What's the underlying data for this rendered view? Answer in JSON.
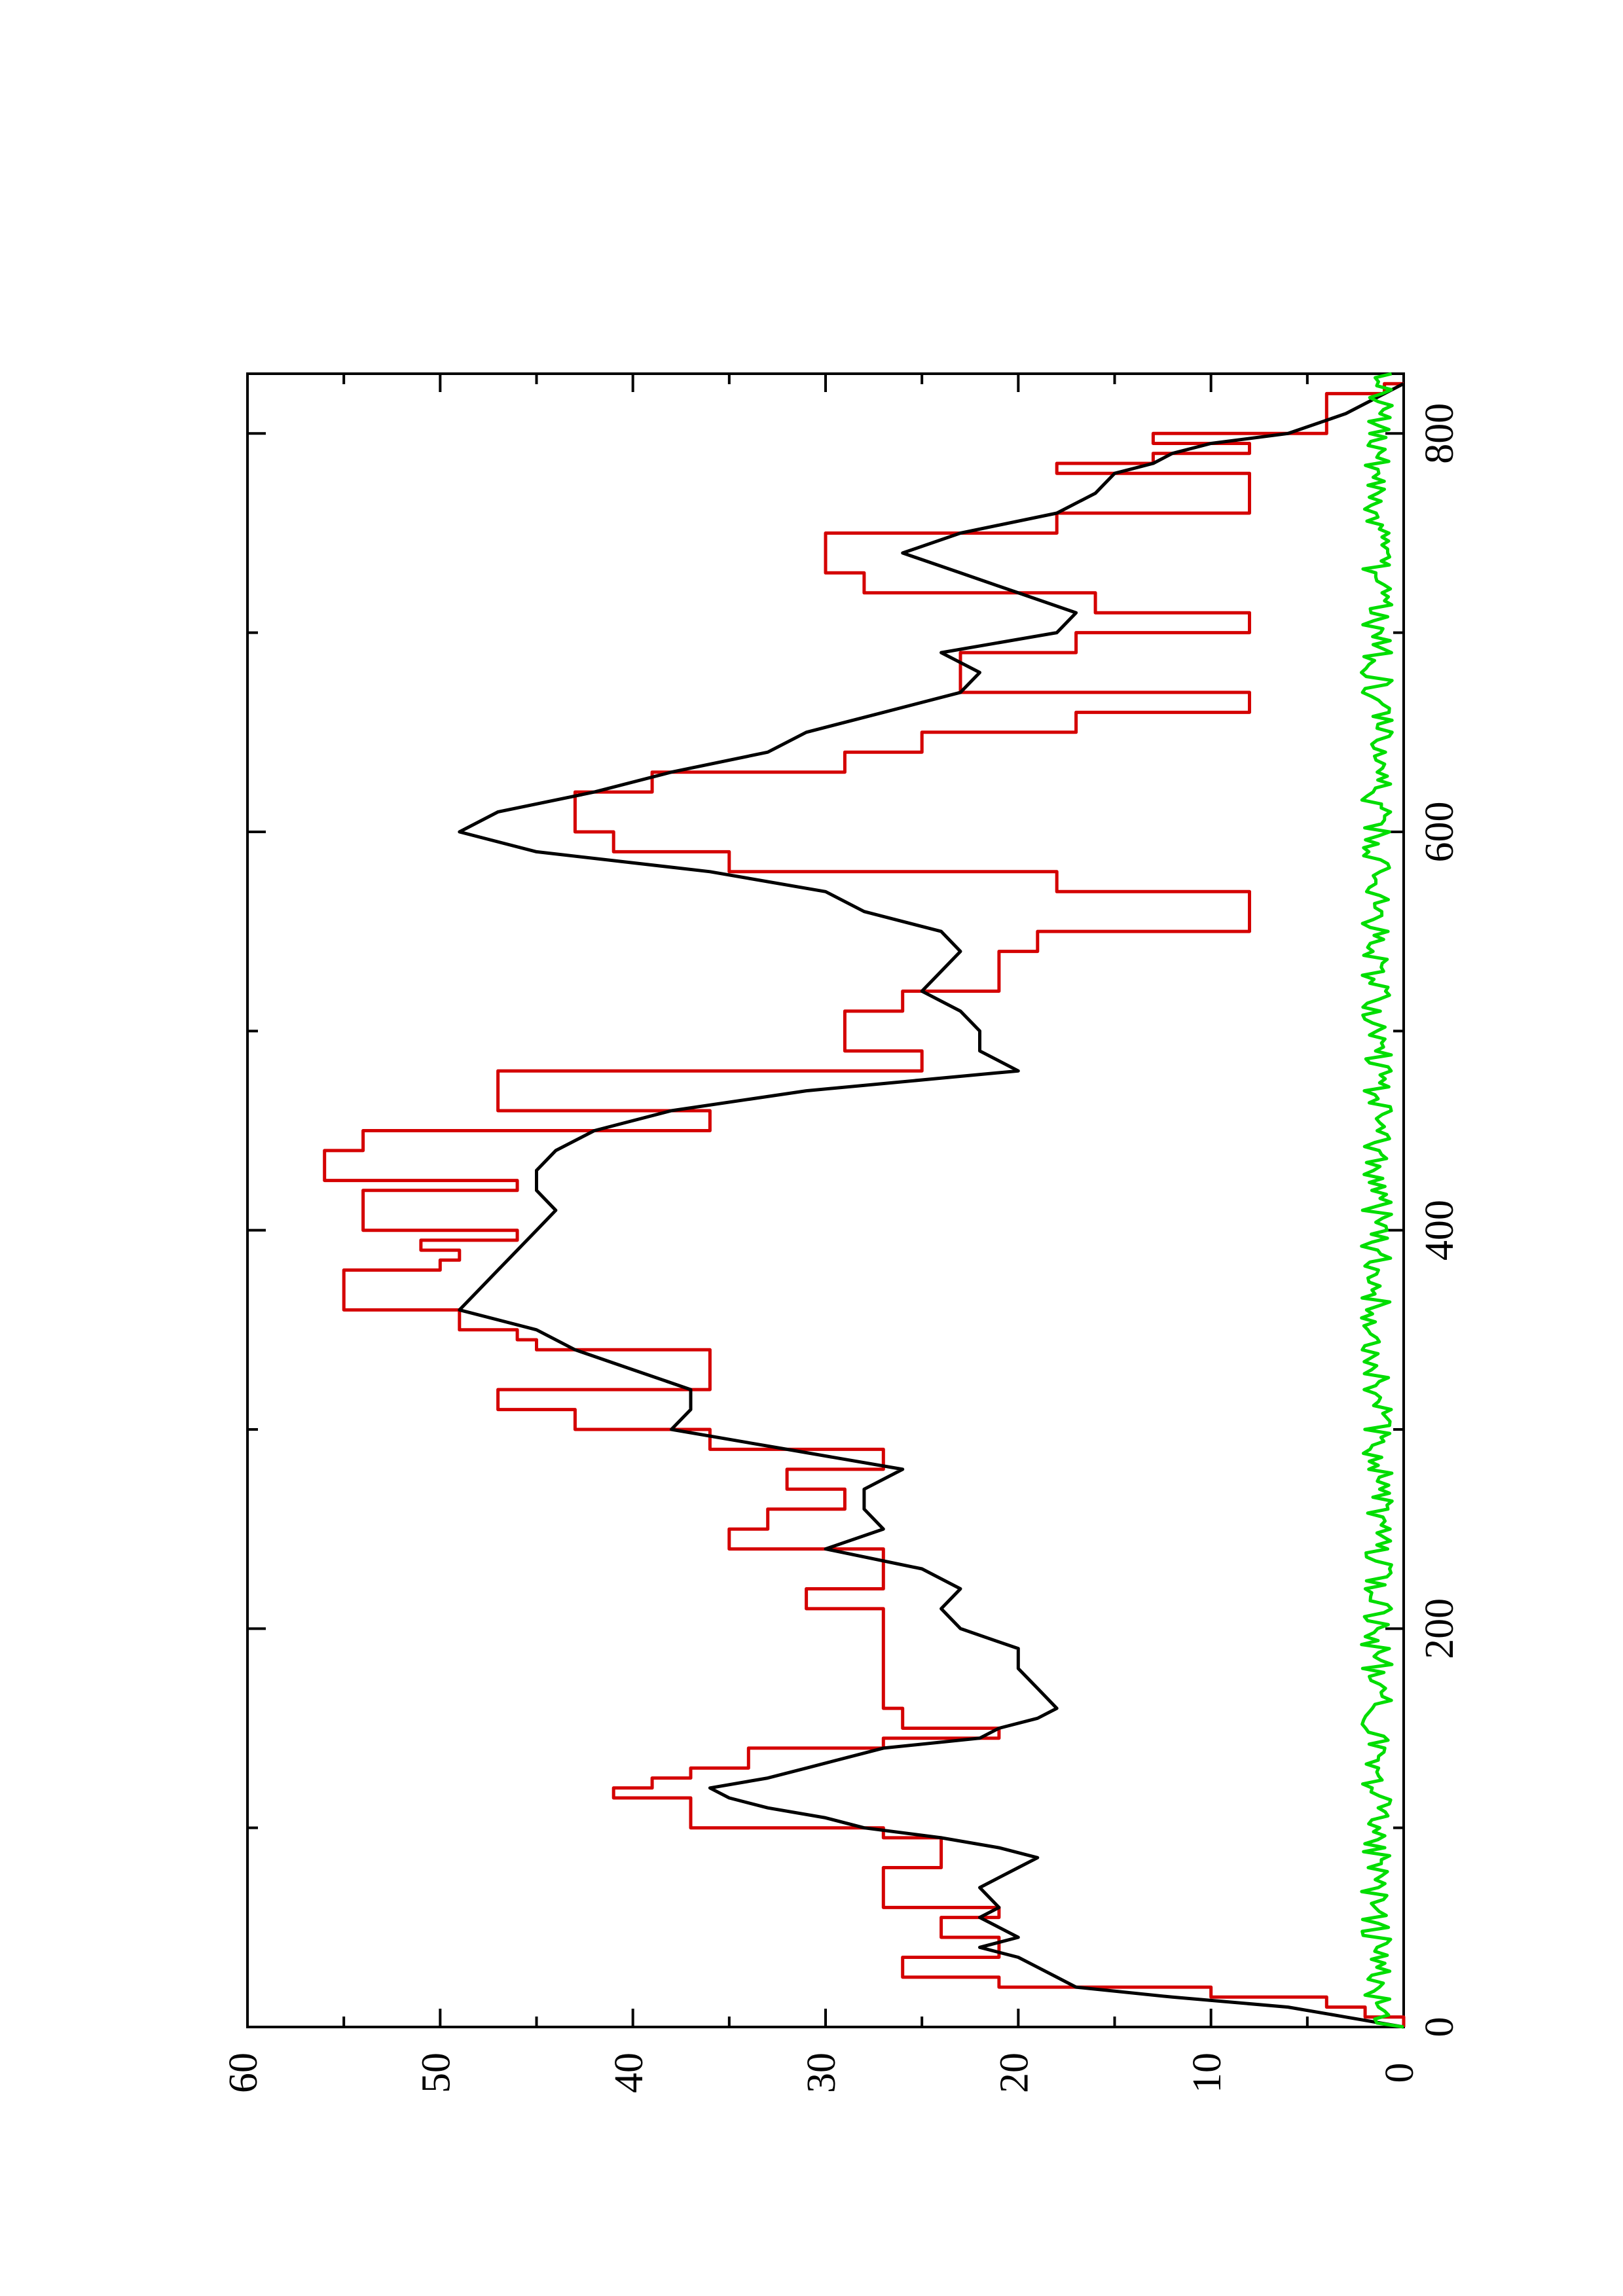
{
  "chart_data": {
    "type": "line",
    "orientation": "rotated-90-counterclockwise",
    "xlim": [
      0,
      830
    ],
    "ylim": [
      0,
      60
    ],
    "x_ticks": [
      0,
      200,
      400,
      600,
      800
    ],
    "x_minor_ticks": [
      100,
      300,
      500,
      700
    ],
    "y_ticks": [
      0,
      10,
      20,
      30,
      40,
      50,
      60
    ],
    "y_minor_ticks": [
      5,
      15,
      25,
      35,
      45,
      55
    ],
    "grid": false,
    "legend": "none",
    "series": [
      {
        "color": "#d40000",
        "style": "step",
        "points": [
          [
            0,
            0
          ],
          [
            5,
            2
          ],
          [
            10,
            4
          ],
          [
            15,
            10
          ],
          [
            20,
            21
          ],
          [
            25,
            26
          ],
          [
            30,
            26
          ],
          [
            35,
            21
          ],
          [
            40,
            21
          ],
          [
            45,
            24
          ],
          [
            50,
            24
          ],
          [
            55,
            21
          ],
          [
            60,
            27
          ],
          [
            70,
            27
          ],
          [
            75,
            27
          ],
          [
            80,
            24
          ],
          [
            85,
            24
          ],
          [
            90,
            24
          ],
          [
            95,
            27
          ],
          [
            100,
            37
          ],
          [
            110,
            37
          ],
          [
            115,
            41
          ],
          [
            120,
            39
          ],
          [
            125,
            37
          ],
          [
            130,
            34
          ],
          [
            140,
            27
          ],
          [
            145,
            21
          ],
          [
            150,
            26
          ],
          [
            160,
            27
          ],
          [
            170,
            27
          ],
          [
            180,
            27
          ],
          [
            190,
            27
          ],
          [
            200,
            27
          ],
          [
            210,
            31
          ],
          [
            220,
            27
          ],
          [
            230,
            27
          ],
          [
            240,
            35
          ],
          [
            250,
            33
          ],
          [
            260,
            29
          ],
          [
            270,
            32
          ],
          [
            280,
            27
          ],
          [
            290,
            36
          ],
          [
            300,
            43
          ],
          [
            310,
            47
          ],
          [
            320,
            36
          ],
          [
            330,
            36
          ],
          [
            340,
            45
          ],
          [
            345,
            46
          ],
          [
            350,
            49
          ],
          [
            360,
            55
          ],
          [
            370,
            55
          ],
          [
            380,
            50
          ],
          [
            385,
            49
          ],
          [
            390,
            51
          ],
          [
            395,
            46
          ],
          [
            400,
            54
          ],
          [
            410,
            54
          ],
          [
            420,
            46
          ],
          [
            425,
            56
          ],
          [
            430,
            56
          ],
          [
            440,
            54
          ],
          [
            450,
            36
          ],
          [
            460,
            47
          ],
          [
            470,
            47
          ],
          [
            480,
            25
          ],
          [
            490,
            29
          ],
          [
            500,
            29
          ],
          [
            510,
            26
          ],
          [
            520,
            21
          ],
          [
            530,
            21
          ],
          [
            540,
            19
          ],
          [
            550,
            8
          ],
          [
            560,
            8
          ],
          [
            570,
            18
          ],
          [
            580,
            35
          ],
          [
            590,
            41
          ],
          [
            600,
            43
          ],
          [
            610,
            43
          ],
          [
            620,
            39
          ],
          [
            630,
            29
          ],
          [
            640,
            25
          ],
          [
            650,
            17
          ],
          [
            660,
            8
          ],
          [
            670,
            23
          ],
          [
            680,
            23
          ],
          [
            690,
            17
          ],
          [
            700,
            8
          ],
          [
            710,
            16
          ],
          [
            720,
            28
          ],
          [
            730,
            30
          ],
          [
            740,
            30
          ],
          [
            750,
            18
          ],
          [
            760,
            8
          ],
          [
            770,
            8
          ],
          [
            780,
            18
          ],
          [
            785,
            13
          ],
          [
            790,
            8
          ],
          [
            795,
            13
          ],
          [
            800,
            4
          ],
          [
            810,
            4
          ],
          [
            820,
            1
          ],
          [
            825,
            0
          ]
        ]
      },
      {
        "color": "#000000",
        "style": "line",
        "points": [
          [
            0,
            0
          ],
          [
            5,
            3
          ],
          [
            10,
            6
          ],
          [
            15,
            12
          ],
          [
            20,
            17
          ],
          [
            25,
            18
          ],
          [
            30,
            19
          ],
          [
            35,
            20
          ],
          [
            40,
            22
          ],
          [
            45,
            20
          ],
          [
            50,
            21
          ],
          [
            55,
            22
          ],
          [
            60,
            21
          ],
          [
            70,
            22
          ],
          [
            75,
            21
          ],
          [
            80,
            20
          ],
          [
            85,
            19
          ],
          [
            90,
            21
          ],
          [
            95,
            24
          ],
          [
            100,
            28
          ],
          [
            105,
            30
          ],
          [
            110,
            33
          ],
          [
            115,
            35
          ],
          [
            120,
            36
          ],
          [
            125,
            33
          ],
          [
            130,
            31
          ],
          [
            140,
            27
          ],
          [
            145,
            22
          ],
          [
            150,
            21
          ],
          [
            155,
            19
          ],
          [
            160,
            18
          ],
          [
            170,
            19
          ],
          [
            180,
            20
          ],
          [
            190,
            20
          ],
          [
            200,
            23
          ],
          [
            210,
            24
          ],
          [
            220,
            23
          ],
          [
            230,
            25
          ],
          [
            240,
            30
          ],
          [
            250,
            27
          ],
          [
            260,
            28
          ],
          [
            270,
            28
          ],
          [
            280,
            26
          ],
          [
            290,
            32
          ],
          [
            300,
            38
          ],
          [
            310,
            37
          ],
          [
            320,
            37
          ],
          [
            330,
            40
          ],
          [
            340,
            43
          ],
          [
            350,
            45
          ],
          [
            360,
            49
          ],
          [
            370,
            48
          ],
          [
            380,
            47
          ],
          [
            390,
            46
          ],
          [
            400,
            45
          ],
          [
            410,
            44
          ],
          [
            420,
            45
          ],
          [
            430,
            45
          ],
          [
            440,
            44
          ],
          [
            450,
            42
          ],
          [
            460,
            38
          ],
          [
            470,
            31
          ],
          [
            480,
            20
          ],
          [
            490,
            22
          ],
          [
            500,
            22
          ],
          [
            510,
            23
          ],
          [
            520,
            25
          ],
          [
            530,
            24
          ],
          [
            540,
            23
          ],
          [
            550,
            24
          ],
          [
            560,
            28
          ],
          [
            570,
            30
          ],
          [
            580,
            36
          ],
          [
            590,
            45
          ],
          [
            600,
            49
          ],
          [
            610,
            47
          ],
          [
            620,
            42
          ],
          [
            630,
            38
          ],
          [
            640,
            33
          ],
          [
            650,
            31
          ],
          [
            660,
            27
          ],
          [
            670,
            23
          ],
          [
            680,
            22
          ],
          [
            690,
            24
          ],
          [
            700,
            18
          ],
          [
            710,
            17
          ],
          [
            720,
            20
          ],
          [
            730,
            23
          ],
          [
            740,
            26
          ],
          [
            750,
            23
          ],
          [
            760,
            18
          ],
          [
            770,
            16
          ],
          [
            780,
            15
          ],
          [
            785,
            13
          ],
          [
            790,
            12
          ],
          [
            795,
            10
          ],
          [
            800,
            6
          ],
          [
            810,
            3
          ],
          [
            820,
            1
          ],
          [
            825,
            0
          ]
        ]
      },
      {
        "color": "#00dd00",
        "style": "line",
        "points": [
          [
            0,
            0
          ],
          [
            10,
            1
          ],
          [
            20,
            1
          ],
          [
            30,
            1
          ],
          [
            40,
            1
          ],
          [
            50,
            1
          ],
          [
            60,
            1
          ],
          [
            70,
            1
          ],
          [
            80,
            1
          ],
          [
            90,
            1
          ],
          [
            100,
            1
          ],
          [
            110,
            1
          ],
          [
            120,
            1
          ],
          [
            130,
            1
          ],
          [
            140,
            1
          ],
          [
            150,
            1
          ],
          [
            160,
            1
          ],
          [
            170,
            1
          ],
          [
            180,
            1
          ],
          [
            190,
            1
          ],
          [
            200,
            1
          ],
          [
            210,
            1
          ],
          [
            220,
            1
          ],
          [
            230,
            1
          ],
          [
            240,
            1
          ],
          [
            250,
            1
          ],
          [
            260,
            1
          ],
          [
            270,
            1
          ],
          [
            280,
            1
          ],
          [
            290,
            1
          ],
          [
            300,
            1
          ],
          [
            310,
            1
          ],
          [
            320,
            1
          ],
          [
            330,
            1
          ],
          [
            340,
            1
          ],
          [
            350,
            1
          ],
          [
            360,
            1
          ],
          [
            370,
            1
          ],
          [
            380,
            1
          ],
          [
            390,
            1
          ],
          [
            400,
            1
          ],
          [
            410,
            1
          ],
          [
            420,
            1
          ],
          [
            430,
            1
          ],
          [
            440,
            1
          ],
          [
            450,
            1
          ],
          [
            460,
            1
          ],
          [
            470,
            1
          ],
          [
            480,
            1
          ],
          [
            490,
            1
          ],
          [
            500,
            1
          ],
          [
            510,
            1
          ],
          [
            520,
            1
          ],
          [
            530,
            1
          ],
          [
            540,
            1
          ],
          [
            550,
            1
          ],
          [
            560,
            1
          ],
          [
            570,
            1
          ],
          [
            580,
            1
          ],
          [
            590,
            1
          ],
          [
            600,
            1
          ],
          [
            610,
            1
          ],
          [
            620,
            1
          ],
          [
            630,
            1
          ],
          [
            640,
            1
          ],
          [
            650,
            1
          ],
          [
            660,
            1
          ],
          [
            670,
            1
          ],
          [
            680,
            1
          ],
          [
            690,
            1
          ],
          [
            700,
            1
          ],
          [
            710,
            1
          ],
          [
            720,
            1
          ],
          [
            730,
            1
          ],
          [
            740,
            1
          ],
          [
            750,
            1
          ],
          [
            760,
            1
          ],
          [
            770,
            1
          ],
          [
            780,
            1
          ],
          [
            790,
            1
          ],
          [
            800,
            1
          ],
          [
            810,
            1
          ],
          [
            820,
            1
          ],
          [
            830,
            1
          ]
        ],
        "noise_amplitude": 1.6
      }
    ]
  }
}
